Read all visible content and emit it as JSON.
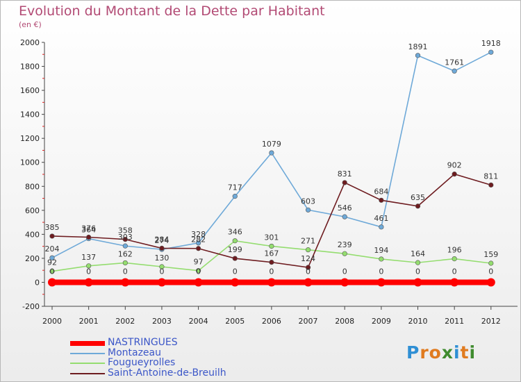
{
  "title": "Evolution du Montant de la Dette par Habitant",
  "unit": "(en €)",
  "logo": {
    "text": "Proxiti",
    "letters": [
      "P",
      "r",
      "o",
      "x",
      "i",
      "t",
      "i"
    ],
    "colors": [
      "#2f8fd4",
      "#e07b1f",
      "#e07b1f",
      "#3f8b2e",
      "#2f8fd4",
      "#e07b1f",
      "#3f8b2e"
    ]
  },
  "chart_data": {
    "type": "line",
    "x": [
      "2000",
      "2001",
      "2002",
      "2003",
      "2004",
      "2005",
      "2006",
      "2007",
      "2008",
      "2009",
      "2010",
      "2011",
      "2012"
    ],
    "ylim": [
      -200,
      2000
    ],
    "yticks": [
      -200,
      0,
      200,
      400,
      600,
      800,
      1000,
      1200,
      1400,
      1600,
      1800,
      2000
    ],
    "grid": false,
    "legend_position": "bottom-left",
    "series": [
      {
        "name": "NASTRINGUES",
        "color": "#ff0000",
        "values": [
          0,
          0,
          0,
          0,
          0,
          0,
          0,
          0,
          0,
          0,
          0,
          0,
          0
        ]
      },
      {
        "name": "Montazeau",
        "color": "#6ea9d8",
        "values": [
          204,
          364,
          303,
          274,
          328,
          717,
          1079,
          603,
          546,
          461,
          1891,
          1761,
          1918
        ]
      },
      {
        "name": "Fougueyrolles",
        "color": "#94dd6f",
        "values": [
          92,
          137,
          162,
          130,
          97,
          346,
          301,
          271,
          239,
          194,
          164,
          196,
          159
        ]
      },
      {
        "name": "Saint-Antoine-de-Breuilh",
        "color": "#6e1c20",
        "values": [
          385,
          376,
          358,
          284,
          282,
          199,
          167,
          124,
          831,
          684,
          635,
          902,
          811
        ]
      }
    ]
  }
}
